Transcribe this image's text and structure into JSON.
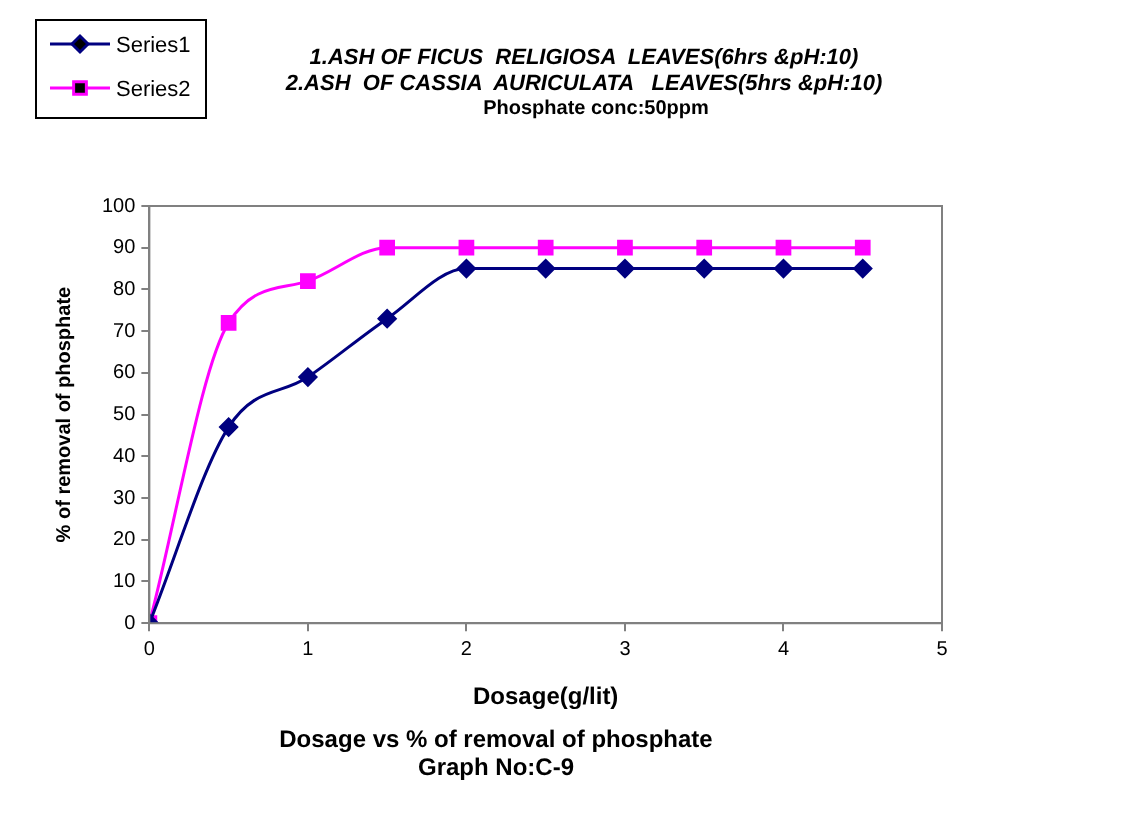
{
  "chart_data": {
    "type": "line",
    "title": "1.ASH OF FICUS  RELIGIOSA  LEAVES(6hrs &pH:10)",
    "subtitle": "2.ASH  OF CASSIA  AURICULATA   LEAVES(5hrs &pH:10)",
    "annotations": [
      "Phosphate conc:50ppm",
      "Dosage vs % of removal of phosphate",
      "Graph No:C-9"
    ],
    "xlabel": "Dosage(g/lit)",
    "ylabel": "% of removal of phosphate",
    "x": [
      0,
      0.5,
      1,
      1.5,
      2,
      2.5,
      3,
      3.5,
      4,
      4.5
    ],
    "series": [
      {
        "name": "Series1",
        "color": "#000080",
        "marker": "diamond",
        "values": [
          0,
          47,
          59,
          73,
          85,
          85,
          85,
          85,
          85,
          85
        ]
      },
      {
        "name": "Series2",
        "color": "#ff00ff",
        "marker": "square",
        "values": [
          0,
          72,
          82,
          90,
          90,
          90,
          90,
          90,
          90,
          90
        ]
      }
    ],
    "xlim": [
      0,
      5
    ],
    "xticks": [
      0,
      1,
      2,
      3,
      4,
      5
    ],
    "ylim": [
      0,
      100
    ],
    "yticks": [
      0,
      10,
      20,
      30,
      40,
      50,
      60,
      70,
      80,
      90,
      100
    ],
    "legend": "top left",
    "line_style": "solid"
  }
}
